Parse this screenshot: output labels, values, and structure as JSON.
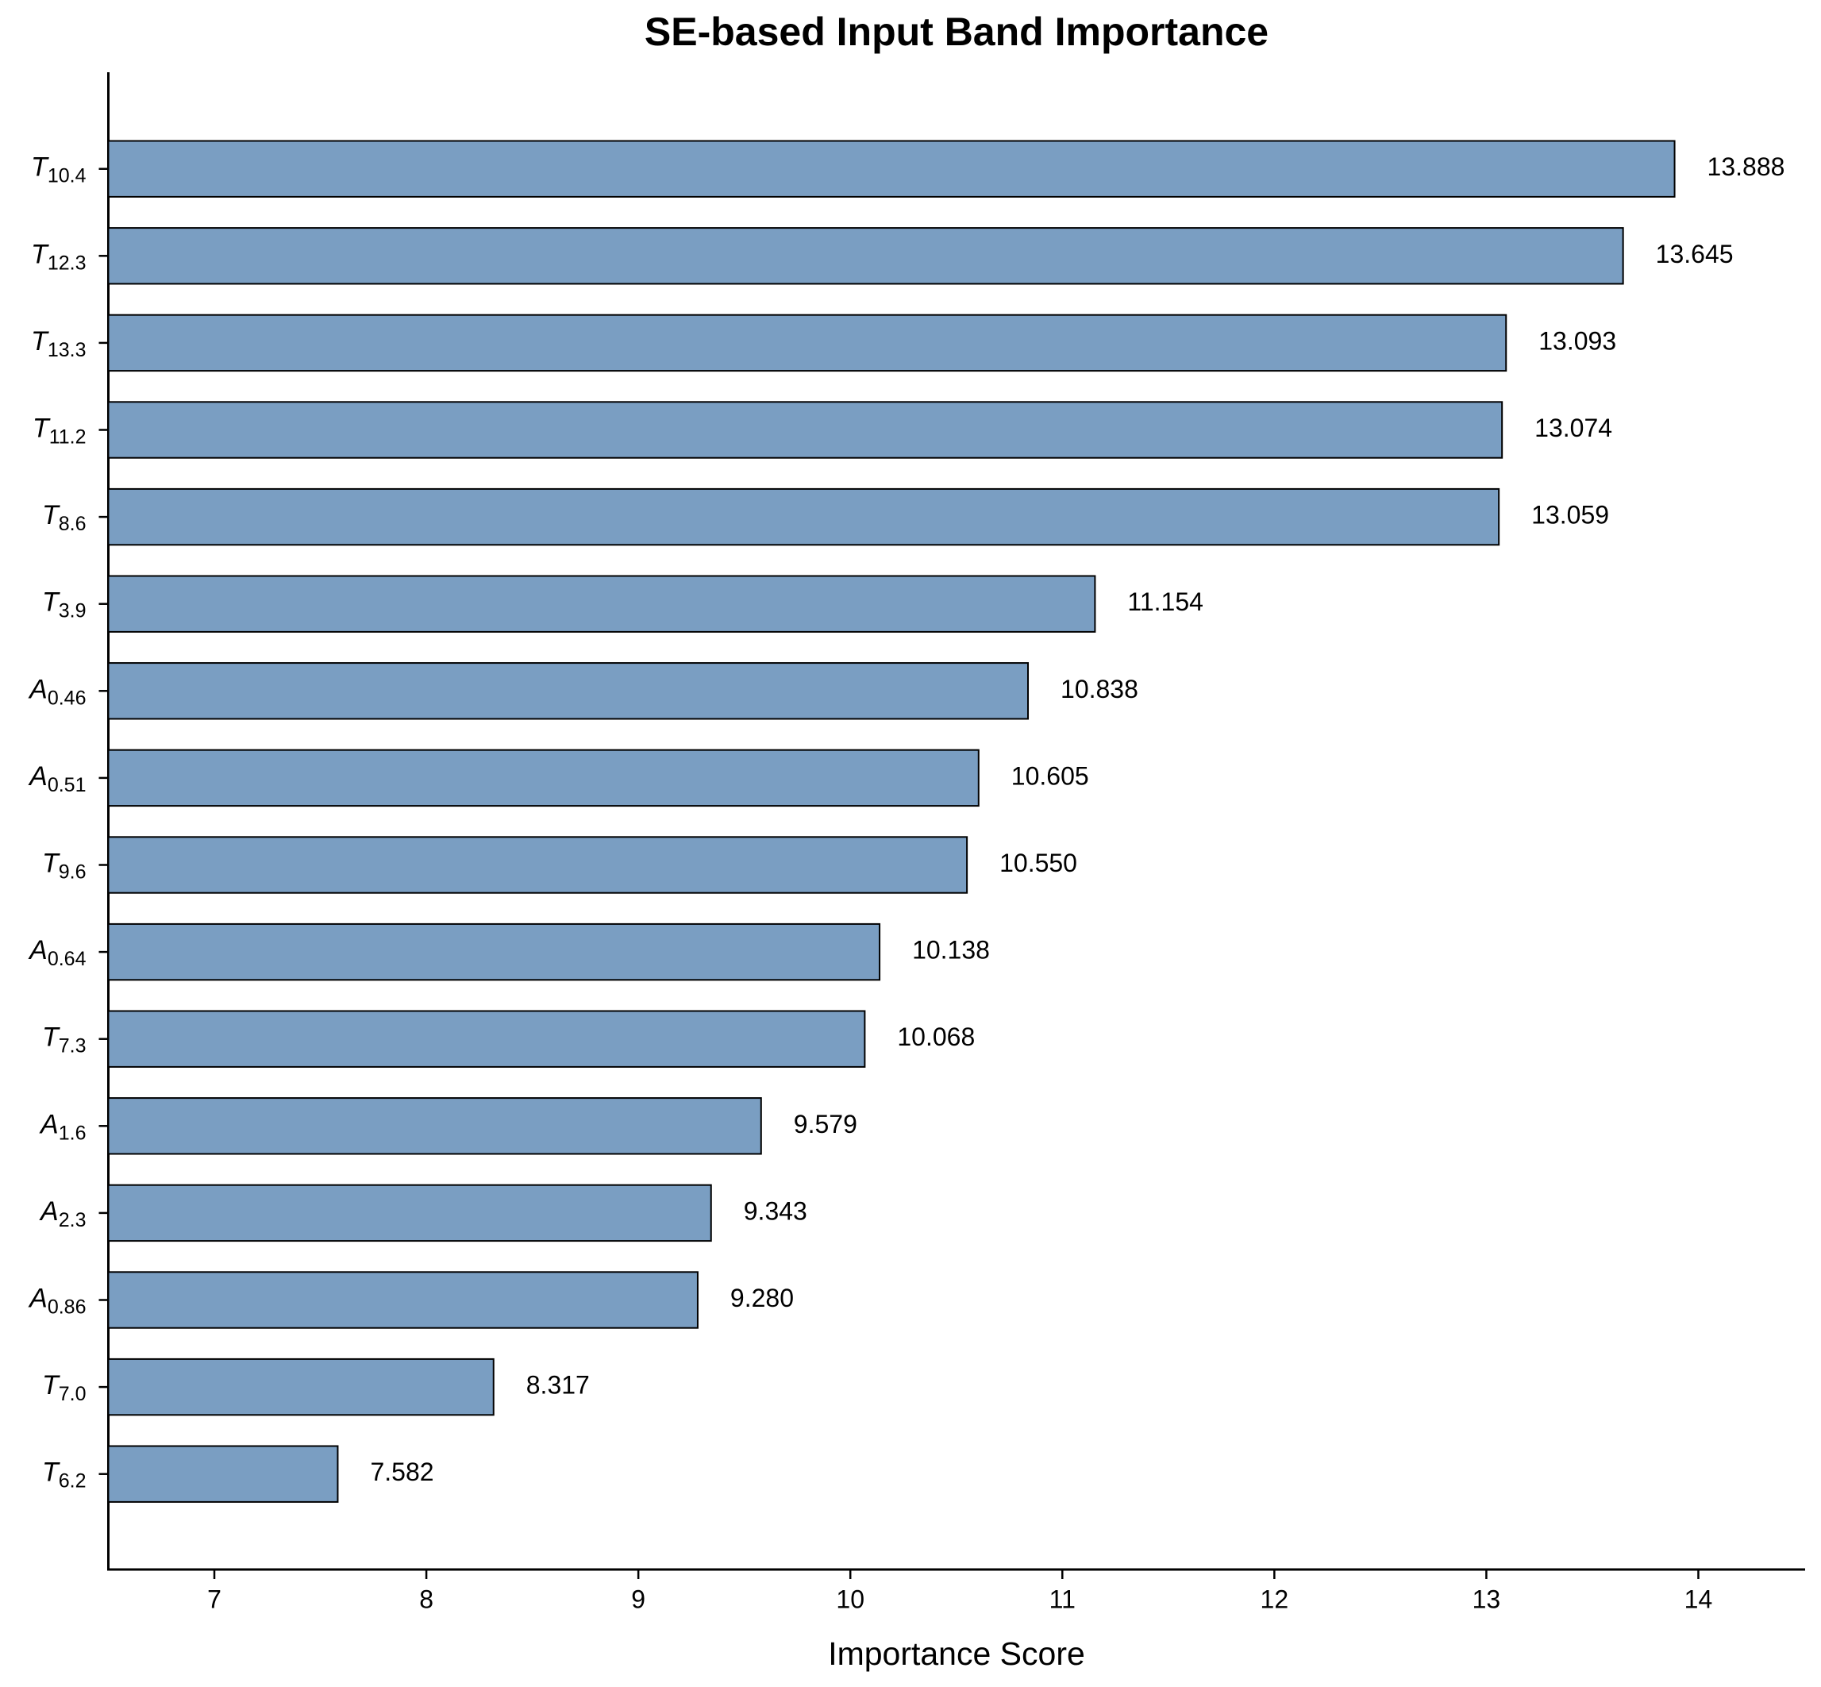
{
  "chart_data": {
    "type": "bar",
    "orientation": "horizontal",
    "title": "SE-based Input Band Importance",
    "x_label": "Importance Score",
    "categories": [
      "T10.4",
      "T12.3",
      "T13.3",
      "T11.2",
      "T8.6",
      "T3.9",
      "A0.46",
      "A0.51",
      "T9.6",
      "A0.64",
      "T7.3",
      "A1.6",
      "A2.3",
      "A0.86",
      "T7.0",
      "T6.2"
    ],
    "values": [
      13.888,
      13.645,
      13.093,
      13.074,
      13.059,
      11.154,
      10.838,
      10.605,
      10.55,
      10.138,
      10.068,
      9.579,
      9.343,
      9.28,
      8.317,
      7.582
    ],
    "value_labels": [
      "13.888",
      "13.645",
      "13.093",
      "13.074",
      "13.059",
      "11.154",
      "10.838",
      "10.605",
      "10.550",
      "10.138",
      "10.068",
      "9.579",
      "9.343",
      "9.280",
      "8.317",
      "7.582"
    ],
    "color": "#7a9ec2",
    "xlim": [
      6.5,
      14.5
    ],
    "xticks": [
      7,
      8,
      9,
      10,
      11,
      12,
      13,
      14
    ]
  }
}
